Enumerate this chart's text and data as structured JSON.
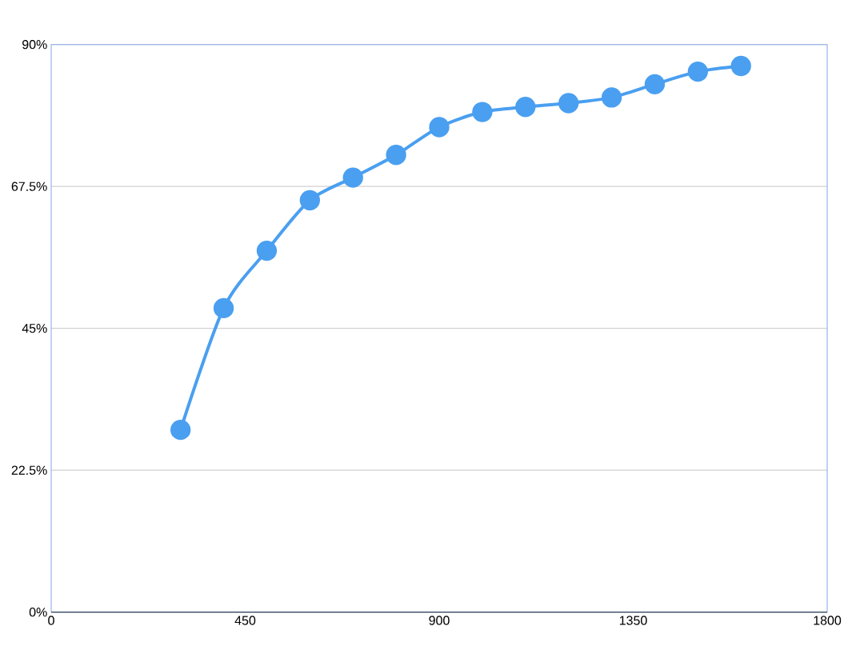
{
  "chart_data": {
    "type": "line",
    "x": [
      300,
      400,
      500,
      600,
      700,
      800,
      900,
      1000,
      1100,
      1200,
      1300,
      1400,
      1500,
      1600
    ],
    "series": [
      {
        "color": "#4a9ff0",
        "values": [
          28.9,
          48.2,
          57.3,
          65.3,
          68.9,
          72.5,
          76.9,
          79.3,
          80.1,
          80.7,
          81.6,
          83.7,
          85.7,
          86.6
        ]
      }
    ],
    "xlim": [
      0,
      1800
    ],
    "xticks": [
      0,
      450,
      900,
      1350,
      1800
    ],
    "ylim": [
      0,
      90
    ],
    "yticks": [
      {
        "value": 0,
        "label": "0%"
      },
      {
        "value": 22.5,
        "label": "22.5%"
      },
      {
        "value": 45,
        "label": "45%"
      },
      {
        "value": 67.5,
        "label": "67.5%"
      },
      {
        "value": 90,
        "label": "90%"
      }
    ],
    "grid": "y",
    "marker": "circle",
    "line_style": "solid"
  }
}
